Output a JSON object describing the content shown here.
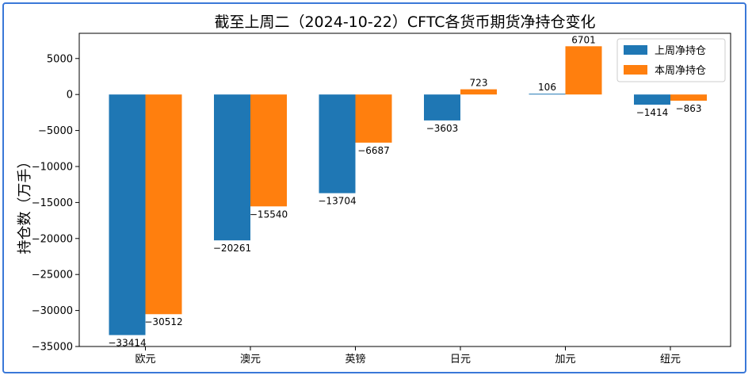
{
  "chart_data": {
    "type": "bar",
    "title": "截至上周二（2024-10-22）CFTC各货币期货净持仓变化",
    "xlabel": "",
    "ylabel": "持仓数（万手）",
    "categories": [
      "欧元",
      "澳元",
      "英镑",
      "日元",
      "加元",
      "纽元"
    ],
    "series": [
      {
        "name": "上周净持仓",
        "color": "#1f77b4",
        "values": [
          -33414,
          -20261,
          -13704,
          -3603,
          106,
          -1414
        ]
      },
      {
        "name": "本周净持仓",
        "color": "#ff7f0e",
        "values": [
          -30512,
          -15540,
          -6687,
          723,
          6701,
          -863
        ]
      }
    ],
    "ylim": [
      -35000,
      8500
    ],
    "yticks": [
      5000,
      0,
      -5000,
      -10000,
      -15000,
      -20000,
      -25000,
      -30000,
      -35000
    ],
    "grid": false,
    "legend_position": "top-right"
  }
}
